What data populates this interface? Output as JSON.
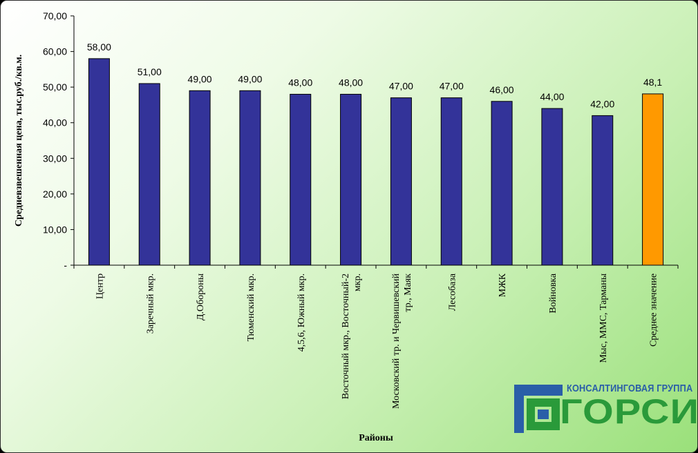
{
  "chart_data": {
    "type": "bar",
    "title": "",
    "xlabel": "Районы",
    "ylabel": "Средневзвешенная цена, тыс.руб./кв.м.",
    "ylim": [
      0,
      70
    ],
    "yticks": [
      "-",
      "10,00",
      "20,00",
      "30,00",
      "40,00",
      "50,00",
      "60,00",
      "70,00"
    ],
    "grid": false,
    "categories": [
      "Центр",
      "Заречный мкр.",
      "Д.Обороны",
      "Тюменский мкр.",
      "4,5,6, Южный мкр.",
      "Восточный мкр., Восточный-2 мкр.",
      "Московский тр. и Червишевский тр., Маяк",
      "Лесобаза",
      "МЖК",
      "Войновка",
      "Мыс, ММС, Тарманы",
      "Среднее значение"
    ],
    "category_lines": [
      [
        "Центр"
      ],
      [
        "Заречный мкр."
      ],
      [
        "Д.Обороны"
      ],
      [
        "Тюменский мкр."
      ],
      [
        "4,5,6, Южный мкр."
      ],
      [
        "Восточный мкр., Восточный-2",
        "мкр."
      ],
      [
        "Московский тр. и Червишевский",
        "тр., Маяк"
      ],
      [
        "Лесобаза"
      ],
      [
        "МЖК"
      ],
      [
        "Войновка"
      ],
      [
        "Мыс, ММС, Тарманы"
      ],
      [
        "Среднее значение"
      ]
    ],
    "values": [
      58,
      51,
      49,
      49,
      48,
      48,
      47,
      47,
      46,
      44,
      42,
      48.1
    ],
    "data_labels": [
      "58,00",
      "51,00",
      "49,00",
      "49,00",
      "48,00",
      "48,00",
      "47,00",
      "47,00",
      "46,00",
      "44,00",
      "42,00",
      "48,1"
    ],
    "colors": {
      "bar": "#333399",
      "highlight": "#ff9900",
      "highlight_index": 11
    }
  },
  "logo": {
    "top_text": "КОНСАЛТИНГОВАЯ ГРУППА",
    "main_text": "ГОРСИ",
    "colors": {
      "blue": "#2a5ea8",
      "green": "#2a9a3a"
    }
  }
}
